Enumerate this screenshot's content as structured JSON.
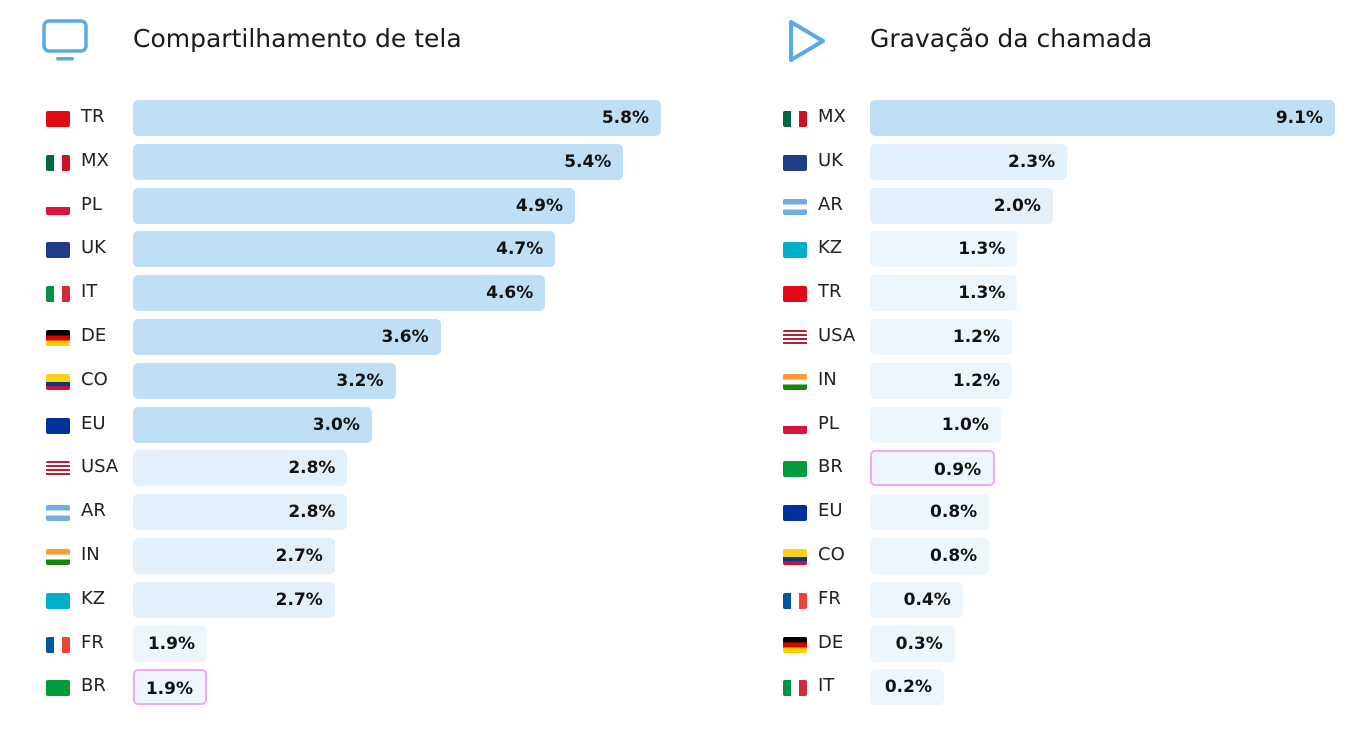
{
  "chart_data": [
    {
      "type": "bar",
      "orientation": "horizontal",
      "title": "Compartilhamento de tela",
      "icon": "monitor-icon",
      "categories": [
        "TR",
        "MX",
        "PL",
        "UK",
        "IT",
        "DE",
        "CO",
        "EU",
        "USA",
        "AR",
        "IN",
        "KZ",
        "FR",
        "BR"
      ],
      "values": [
        5.8,
        5.4,
        4.9,
        4.7,
        4.6,
        3.6,
        3.2,
        3.0,
        2.8,
        2.8,
        2.7,
        2.7,
        1.9,
        1.9
      ],
      "labels": [
        "5.8%",
        "5.4%",
        "4.9%",
        "4.7%",
        "4.6%",
        "3.6%",
        "3.2%",
        "3.0%",
        "2.8%",
        "2.8%",
        "2.7%",
        "2.7%",
        "1.9%",
        "1.9%"
      ],
      "highlight": "BR"
    },
    {
      "type": "bar",
      "orientation": "horizontal",
      "title": "Gravação da chamada",
      "icon": "play-icon",
      "categories": [
        "MX",
        "UK",
        "AR",
        "KZ",
        "TR",
        "USA",
        "IN",
        "PL",
        "BR",
        "EU",
        "CO",
        "FR",
        "DE",
        "IT"
      ],
      "values": [
        9.1,
        2.3,
        2.0,
        1.3,
        1.3,
        1.2,
        1.2,
        1.0,
        0.9,
        0.8,
        0.8,
        0.4,
        0.3,
        0.2
      ],
      "labels": [
        "9.1%",
        "2.3%",
        "2.0%",
        "1.3%",
        "1.3%",
        "1.2%",
        "1.2%",
        "1.0%",
        "0.9%",
        "0.8%",
        "0.8%",
        "0.4%",
        "0.3%",
        "0.2%"
      ],
      "highlight": "BR"
    }
  ],
  "colors": {
    "bar_dark": "#bfdff7",
    "bar_mid": "#e2f0fc",
    "bar_light": "#eef6fd",
    "highlight_border": "#f0a8f0",
    "icon": "#5aa9e6"
  }
}
